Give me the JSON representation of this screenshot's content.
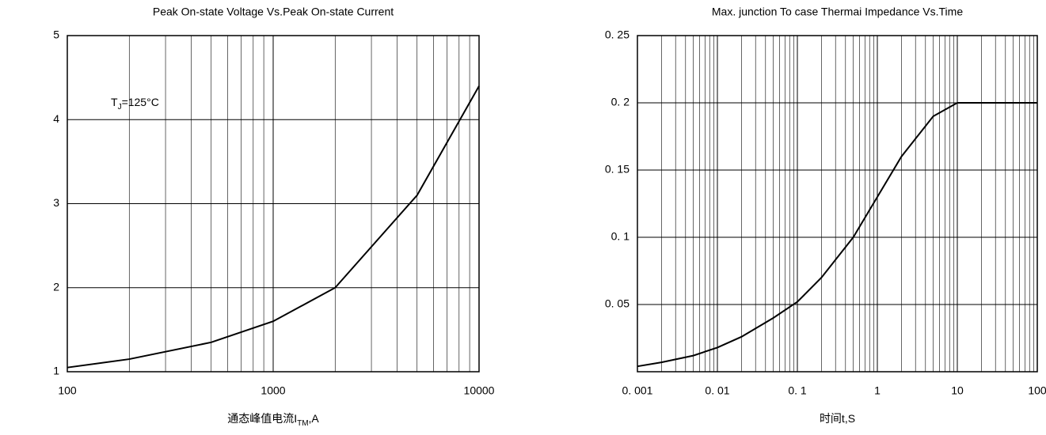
{
  "chart_data": [
    {
      "type": "line",
      "title": "Peak On-state Voltage Vs.Peak On-state Current",
      "annotation": {
        "main": "T",
        "sub": "J",
        "rest": "=125°C"
      },
      "x_label": {
        "main": "通态峰值电流I",
        "sub": "TM",
        "rest": ",A"
      },
      "x_log": true,
      "grid": true,
      "xlim": [
        100,
        10000
      ],
      "xticks": [
        100,
        1000,
        10000
      ],
      "ylim": [
        1,
        5
      ],
      "yticks": [
        1,
        2,
        3,
        4,
        5
      ],
      "series": [
        {
          "color": "#000000",
          "x": [
            100,
            200,
            500,
            1000,
            2000,
            5000,
            10000
          ],
          "values": [
            1.05,
            1.15,
            1.35,
            1.6,
            2.0,
            3.1,
            4.4
          ]
        }
      ]
    },
    {
      "type": "line",
      "title": "Max. junction To case Thermai Impedance Vs.Time",
      "x_label": {
        "main": "时间t,S"
      },
      "x_log": true,
      "grid": true,
      "xlim": [
        0.001,
        100
      ],
      "xticks": [
        {
          "value": 0.001,
          "label": "0. 001"
        },
        {
          "value": 0.01,
          "label": "0. 01"
        },
        {
          "value": 0.1,
          "label": "0. 1"
        },
        1,
        10,
        100
      ],
      "ylim": [
        0,
        0.25
      ],
      "yticks": [
        {
          "value": 0.05,
          "label": "0. 05"
        },
        {
          "value": 0.1,
          "label": "0. 1"
        },
        {
          "value": 0.15,
          "label": "0. 15"
        },
        {
          "value": 0.2,
          "label": "0. 2"
        },
        {
          "value": 0.25,
          "label": "0. 25"
        }
      ],
      "series": [
        {
          "color": "#000000",
          "x": [
            0.001,
            0.002,
            0.005,
            0.01,
            0.02,
            0.05,
            0.1,
            0.2,
            0.5,
            1,
            2,
            5,
            10,
            100
          ],
          "values": [
            0.004,
            0.007,
            0.012,
            0.018,
            0.026,
            0.04,
            0.052,
            0.07,
            0.1,
            0.13,
            0.16,
            0.19,
            0.2,
            0.2
          ]
        }
      ]
    }
  ]
}
